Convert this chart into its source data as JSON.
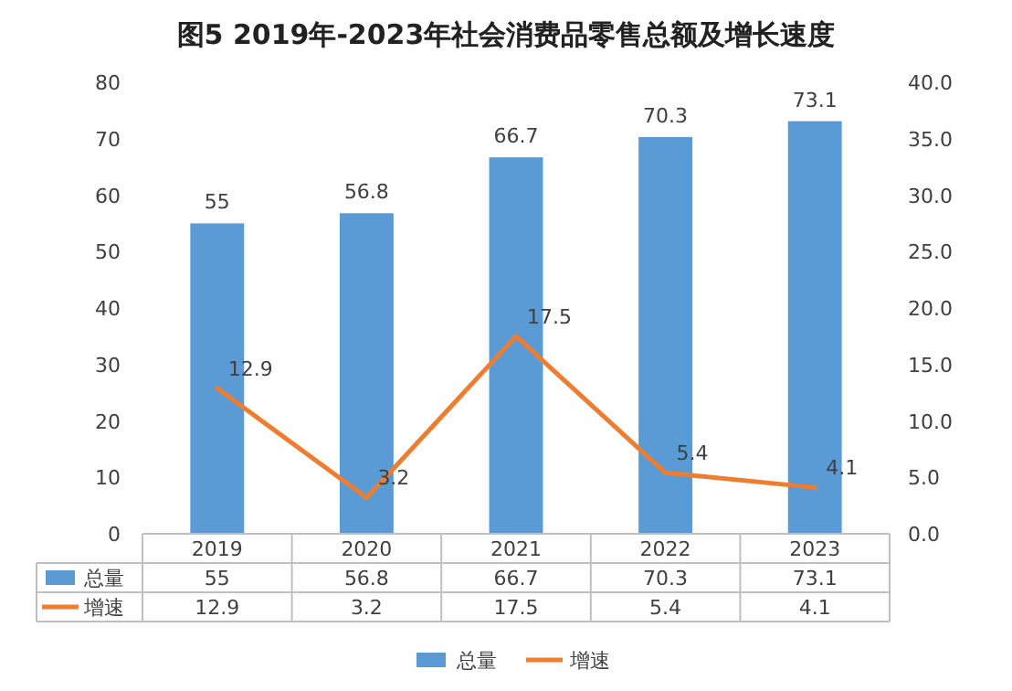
{
  "chart_data": {
    "type": "bar",
    "title": "图5  2019年-2023年社会消费品零售总额及增长速度",
    "categories": [
      "2019",
      "2020",
      "2021",
      "2022",
      "2023"
    ],
    "series": [
      {
        "name": "总量",
        "type": "bar",
        "color": "#5b9bd5",
        "values": [
          55,
          56.8,
          66.7,
          70.3,
          73.1
        ],
        "value_labels": [
          "55",
          "56.8",
          "66.7",
          "70.3",
          "73.1"
        ]
      },
      {
        "name": "增速",
        "type": "line",
        "color": "#ed7d31",
        "axis": "y2",
        "values": [
          12.9,
          3.2,
          17.5,
          5.4,
          4.1
        ],
        "value_labels": [
          "12.9",
          "3.2",
          "17.5",
          "5.4",
          "4.1"
        ]
      }
    ],
    "ylim": [
      0,
      80
    ],
    "yticks": [
      0,
      10,
      20,
      30,
      40,
      50,
      60,
      70,
      80
    ],
    "y2lim": [
      0,
      40
    ],
    "y2ticks": [
      {
        "value": 0,
        "label": "0.0"
      },
      {
        "value": 5,
        "label": "5.0"
      },
      {
        "value": 10,
        "label": "10.0"
      },
      {
        "value": 15,
        "label": "15.0"
      },
      {
        "value": 20,
        "label": "20.0"
      },
      {
        "value": 25,
        "label": "25.0"
      },
      {
        "value": 30,
        "label": "30.0"
      },
      {
        "value": 35,
        "label": "35.0"
      },
      {
        "value": 40,
        "label": "40.0"
      }
    ],
    "data_labels": true,
    "legend": "bottom"
  }
}
